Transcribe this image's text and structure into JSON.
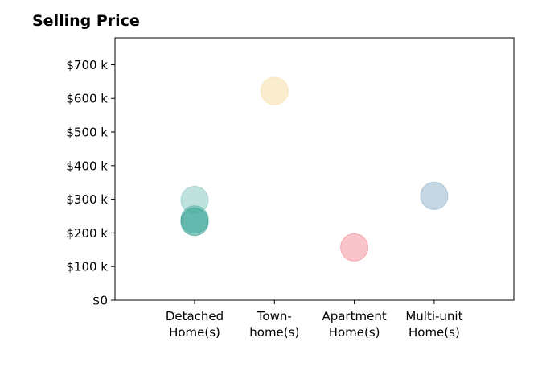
{
  "chart_data": {
    "type": "scatter",
    "title": "Selling Price",
    "xlabel": "",
    "ylabel": "",
    "categories": [
      [
        "Detached",
        "Home(s)"
      ],
      [
        "Town-",
        "home(s)"
      ],
      [
        "Apartment",
        "Home(s)"
      ],
      [
        "Multi-unit",
        "Home(s)"
      ]
    ],
    "ylim": [
      0,
      780000
    ],
    "yticks": [
      0,
      100000,
      200000,
      300000,
      400000,
      500000,
      600000,
      700000
    ],
    "ytick_labels": [
      "$0",
      "$100 k",
      "$200 k",
      "$300 k",
      "$400 k",
      "$500 k",
      "$600 k",
      "$700 k"
    ],
    "grid": false,
    "points": [
      {
        "category": "Detached Home(s)",
        "value": 298000,
        "color": "#8ccbc3",
        "opacity": 0.55
      },
      {
        "category": "Detached Home(s)",
        "value": 240000,
        "color": "#5eb5aa",
        "opacity": 0.6
      },
      {
        "category": "Detached Home(s)",
        "value": 233000,
        "color": "#3fa699",
        "opacity": 0.6
      },
      {
        "category": "Town-home(s)",
        "value": 622000,
        "color": "#f6dfa8",
        "opacity": 0.55
      },
      {
        "category": "Apartment Home(s)",
        "value": 157000,
        "color": "#f48a96",
        "opacity": 0.5
      },
      {
        "category": "Multi-unit Home(s)",
        "value": 310000,
        "color": "#98b6cc",
        "opacity": 0.55
      }
    ]
  }
}
